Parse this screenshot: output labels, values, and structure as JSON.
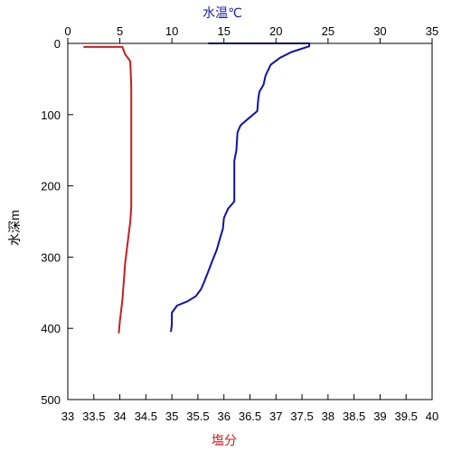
{
  "chart_data": {
    "type": "line",
    "title": "",
    "grid": false,
    "y_axis": {
      "label": "水深m",
      "range": [
        0,
        500
      ],
      "inverted": true,
      "ticks": [
        "0",
        "100",
        "200",
        "300",
        "400",
        "500"
      ]
    },
    "x_axis_top": {
      "label": "水温℃",
      "color": "#1a1ab4",
      "range": [
        0,
        35
      ],
      "ticks": [
        "0",
        "5",
        "10",
        "15",
        "20",
        "25",
        "30",
        "35"
      ]
    },
    "x_axis_bottom": {
      "label": "塩分",
      "color": "#c81e1e",
      "range": [
        33,
        40
      ],
      "ticks": [
        "33",
        "33.5",
        "34",
        "34.5",
        "35",
        "35.5",
        "36",
        "36.5",
        "37",
        "37.5",
        "38",
        "38.5",
        "39",
        "39.5",
        "40"
      ]
    },
    "series": [
      {
        "axis": "top",
        "color": "#1010b0",
        "points": [
          [
            13.5,
            0
          ],
          [
            23.2,
            0
          ],
          [
            23.2,
            4
          ],
          [
            21.5,
            12
          ],
          [
            20.4,
            20
          ],
          [
            19.5,
            30
          ],
          [
            19.0,
            45
          ],
          [
            18.8,
            58
          ],
          [
            18.4,
            68
          ],
          [
            18.3,
            78
          ],
          [
            18.2,
            95
          ],
          [
            17.4,
            105
          ],
          [
            16.6,
            115
          ],
          [
            16.3,
            125
          ],
          [
            16.2,
            150
          ],
          [
            16.0,
            165
          ],
          [
            16.0,
            222
          ],
          [
            15.4,
            232
          ],
          [
            15.0,
            245
          ],
          [
            14.9,
            260
          ],
          [
            14.6,
            275
          ],
          [
            14.3,
            290
          ],
          [
            13.9,
            305
          ],
          [
            13.5,
            320
          ],
          [
            13.1,
            335
          ],
          [
            12.8,
            345
          ],
          [
            12.3,
            355
          ],
          [
            11.5,
            362
          ],
          [
            10.5,
            368
          ],
          [
            10.0,
            378
          ],
          [
            10.0,
            395
          ],
          [
            9.9,
            405
          ]
        ]
      },
      {
        "axis": "bottom",
        "color": "#c81e1e",
        "points": [
          [
            33.3,
            5
          ],
          [
            34.05,
            5
          ],
          [
            34.1,
            15
          ],
          [
            34.2,
            25
          ],
          [
            34.22,
            60
          ],
          [
            34.22,
            230
          ],
          [
            34.2,
            250
          ],
          [
            34.15,
            280
          ],
          [
            34.1,
            310
          ],
          [
            34.08,
            330
          ],
          [
            34.05,
            360
          ],
          [
            34.0,
            390
          ],
          [
            33.98,
            407
          ]
        ]
      }
    ]
  }
}
